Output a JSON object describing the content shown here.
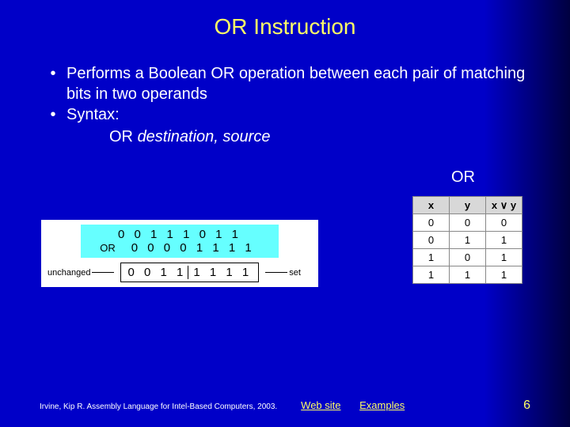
{
  "title": "OR Instruction",
  "bullets": {
    "b1": "Performs a Boolean OR operation between each pair of matching bits in two operands",
    "b2": "Syntax:"
  },
  "syntax": {
    "op": "OR ",
    "args": "destination, source"
  },
  "or_label": "OR",
  "diagram": {
    "row1": "0 0 1 1 1 0 1 1",
    "or_text": "OR",
    "row2": "0 0 0 0 1 1 1 1",
    "left_anno": "unchanged",
    "result_left": "0 0 1 1",
    "result_right": "1 1 1 1",
    "right_anno": "set"
  },
  "truth": {
    "h1": "x",
    "h2": "y",
    "h3": "x ∨ y",
    "r": [
      [
        "0",
        "0",
        "0"
      ],
      [
        "0",
        "1",
        "1"
      ],
      [
        "1",
        "0",
        "1"
      ],
      [
        "1",
        "1",
        "1"
      ]
    ]
  },
  "footer": {
    "cite": "Irvine, Kip R. Assembly Language for Intel-Based Computers, 2003.",
    "link1": "Web site",
    "link2": "Examples",
    "page": "6"
  },
  "colors": {
    "bg_main": "#0000c8",
    "bg_edge": "#000040",
    "title": "#ffff66",
    "text": "#ffffff",
    "link": "#ffff66",
    "diagram_bits_bg": "#66ffff"
  }
}
